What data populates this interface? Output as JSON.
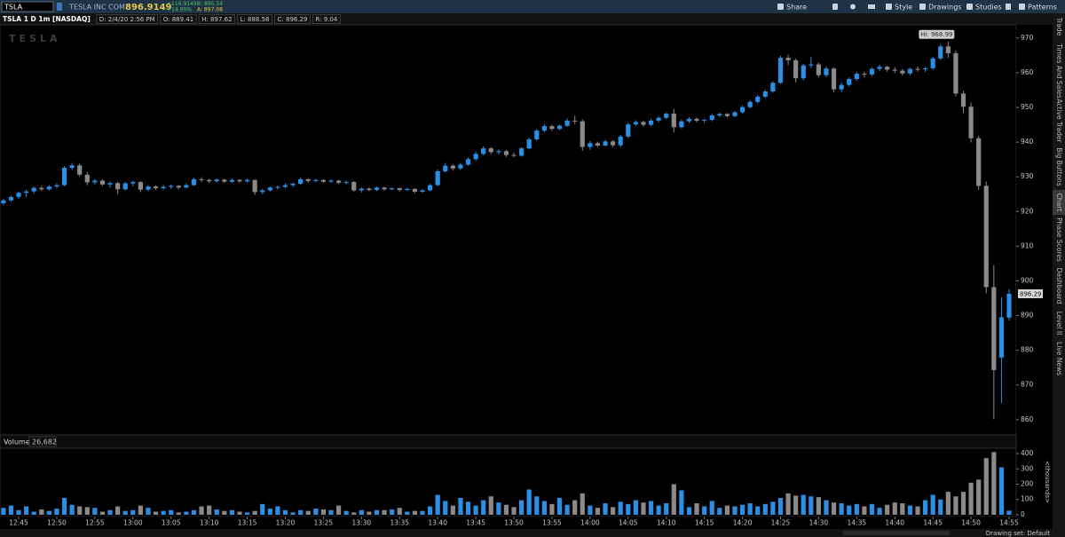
{
  "header": {
    "symbol": "TSLA",
    "company": "TESLA INC COM",
    "last": "896.9149",
    "change": "+116.9149",
    "change_pct": "+14.99%",
    "bid": "B: 895.54",
    "ask": "A: 897.08",
    "buttons": [
      "Share",
      "Style",
      "Drawings",
      "Studies",
      "Patterns"
    ]
  },
  "info_bar": {
    "title": "TSLA 1 D 1m [NASDAQ]",
    "items": [
      "D: 2/4/20 2:56 PM",
      "O: 889.41",
      "H: 897.62",
      "L: 888.58",
      "C: 896.29",
      "R: 9.04"
    ]
  },
  "side_tabs": [
    "Trade",
    "Times And Sales",
    "Active Trader",
    "Big Buttons",
    "Chart",
    "Phase Scores",
    "Dashboard",
    "Level II",
    "Live News"
  ],
  "footer": {
    "drawing_set": "Drawing set: Default"
  },
  "chart_data": {
    "type": "candlestick",
    "watermark": "TESLA",
    "up_color": "#2b8fe6",
    "down_color": "#8a8a8a",
    "x": [
      763,
      764,
      765,
      766,
      767,
      768,
      769,
      770,
      771,
      772,
      773,
      774,
      775,
      776,
      777,
      778,
      779,
      780,
      781,
      782,
      783,
      784,
      785,
      786,
      787,
      788,
      789,
      790,
      791,
      792,
      793,
      794,
      795,
      796,
      797,
      798,
      799,
      800,
      801,
      802,
      803,
      804,
      805,
      806,
      807,
      808,
      809,
      810,
      811,
      812,
      813,
      814,
      815,
      816,
      817,
      818,
      819,
      820,
      821,
      822,
      823,
      824,
      825,
      826,
      827,
      828,
      829,
      830,
      831,
      832,
      833,
      834,
      835,
      836,
      837,
      838,
      839,
      840,
      841,
      842,
      843,
      844,
      845,
      846,
      847,
      848,
      849,
      850,
      851,
      852,
      853,
      854,
      855,
      856,
      857,
      858,
      859,
      860,
      861,
      862,
      863,
      864,
      865,
      866,
      867,
      868,
      869,
      870,
      871,
      872,
      873,
      874,
      875,
      876,
      877,
      878,
      879,
      880,
      881,
      882,
      883,
      884,
      885,
      886,
      887,
      888,
      889,
      890,
      891,
      892,
      893,
      894,
      895
    ],
    "open": [
      922.4,
      923.2,
      924.2,
      925.4,
      925.8,
      926.8,
      926.4,
      927.2,
      927.6,
      932.6,
      933.3,
      930.6,
      928.4,
      928.9,
      927.8,
      928.2,
      926.4,
      928.1,
      928.5,
      926.3,
      927.2,
      926.7,
      927.1,
      927.4,
      926.9,
      927.6,
      929.3,
      929.1,
      928.7,
      929.2,
      928.6,
      929.1,
      928.7,
      929.1,
      925.6,
      926.1,
      926.9,
      927.1,
      927.6,
      928,
      929.3,
      928.8,
      929.1,
      928.6,
      928.9,
      928.3,
      928.5,
      926.1,
      926.6,
      926.2,
      926.9,
      926.4,
      926.7,
      926.2,
      926.5,
      925.7,
      926.1,
      927.6,
      931.6,
      933.2,
      932.4,
      933.5,
      935.1,
      936.6,
      938.2,
      937.1,
      937.4,
      936.3,
      936.1,
      938.2,
      940.8,
      943.3,
      944.6,
      943.8,
      944.7,
      946.2,
      946,
      938.6,
      939.7,
      939,
      940.2,
      939.1,
      941.6,
      945.1,
      945.8,
      945,
      946.2,
      947,
      948.2,
      944.3,
      946,
      946.7,
      946.2,
      946.4,
      947.7,
      948.1,
      947.5,
      948.6,
      950.1,
      951.6,
      953.1,
      954.6,
      957.1,
      964.3,
      963.6,
      958.4,
      962.1,
      962.4,
      959.3,
      961.2,
      955.2,
      956.5,
      958.2,
      959.7,
      959.5,
      961.1,
      961.7,
      960.9,
      960.6,
      959.8,
      961.1,
      961,
      961.3,
      964.1,
      967.6,
      965.6,
      954,
      950.2,
      941.1,
      927.4,
      898.2,
      877.9,
      889.41
    ],
    "high": [
      923.6,
      924.6,
      925.8,
      926.3,
      927.2,
      927.4,
      927.6,
      928.1,
      933.1,
      934,
      933.8,
      931.4,
      929.3,
      929.2,
      928.6,
      928.5,
      928.5,
      928.9,
      928.7,
      927.6,
      927.5,
      927.7,
      927.8,
      927.6,
      928.1,
      929.7,
      929.9,
      929.4,
      929.5,
      929.4,
      929.6,
      929.3,
      929.5,
      929.2,
      926.5,
      927.2,
      927.5,
      928.1,
      928.4,
      929.8,
      929.6,
      929.4,
      929.3,
      929.2,
      929.1,
      928.9,
      928.8,
      926.9,
      926.9,
      927.2,
      927.1,
      926.9,
      926.9,
      926.8,
      926.7,
      926.4,
      928,
      932.2,
      934,
      933.6,
      934,
      935.6,
      937.2,
      938.8,
      938.6,
      937.9,
      937.8,
      937,
      938.6,
      941.3,
      943.8,
      945.2,
      945,
      945.1,
      946.8,
      947.6,
      946.5,
      940.3,
      940.1,
      940.6,
      940.6,
      942.1,
      945.6,
      946.3,
      946.2,
      946.7,
      947.5,
      948.6,
      949.6,
      946.5,
      947.2,
      947.1,
      946.8,
      948.2,
      948.5,
      948.4,
      949,
      950.6,
      952.1,
      953.6,
      955.1,
      957.6,
      964.9,
      965.2,
      964.1,
      962.6,
      964.5,
      962.9,
      961.8,
      961.6,
      957.2,
      958.7,
      960.2,
      960.3,
      961.6,
      962.3,
      962,
      961.6,
      961.1,
      961.5,
      961.8,
      961.7,
      964.6,
      968.2,
      968.99,
      966.4,
      954.8,
      951.4,
      941.8,
      928.6,
      904.5,
      895.3,
      897.62
    ],
    "low": [
      921.8,
      922.9,
      923.6,
      924.2,
      925.1,
      925.9,
      926,
      926.7,
      927.3,
      932,
      930,
      927.6,
      927.8,
      927.4,
      926.9,
      925,
      926,
      927.3,
      925.6,
      925.8,
      926.2,
      926.3,
      926.5,
      926.4,
      926.6,
      927.4,
      928.5,
      928.2,
      928.4,
      928.2,
      928.3,
      928.2,
      928.4,
      924.8,
      925,
      925.8,
      926.3,
      926.7,
      927.1,
      927.7,
      928.3,
      928.4,
      928.2,
      928.3,
      927.9,
      927.8,
      925.7,
      925.5,
      925.8,
      925.9,
      926,
      926.1,
      925.8,
      925.9,
      925.3,
      925.4,
      925.9,
      927.4,
      931.2,
      931.8,
      932,
      933.2,
      934.6,
      936.2,
      936.5,
      936.4,
      935.7,
      935.6,
      935.8,
      937.9,
      940.4,
      942.8,
      943.2,
      943.4,
      944.4,
      945.2,
      937.5,
      937.8,
      938.6,
      938.7,
      938.5,
      938.6,
      941.2,
      944.6,
      944.4,
      944.6,
      945.7,
      946.6,
      942.8,
      943.9,
      945.5,
      945.7,
      945.6,
      946,
      947.2,
      947.1,
      947.2,
      948.2,
      949.8,
      951.2,
      952.7,
      954.2,
      956.8,
      962.2,
      957.2,
      957.8,
      961.4,
      958.6,
      958.7,
      954.3,
      954.4,
      956,
      957.7,
      958.7,
      959,
      960.5,
      960.3,
      959.9,
      959.2,
      959.3,
      960.3,
      960.2,
      960.8,
      963.7,
      964.3,
      953.2,
      948.4,
      939.9,
      926.2,
      896.4,
      860.1,
      864.8,
      888.58
    ],
    "close": [
      923.2,
      924.2,
      925.4,
      925.8,
      926.8,
      926.4,
      927.2,
      927.6,
      932.6,
      933.3,
      930.6,
      928.4,
      928.9,
      927.8,
      928.2,
      926.4,
      928.1,
      928.5,
      926.3,
      927.2,
      926.7,
      927.1,
      927.4,
      926.9,
      927.6,
      929.3,
      929.1,
      928.7,
      929.2,
      928.6,
      929.1,
      928.7,
      929.1,
      925.6,
      926.1,
      926.9,
      927.1,
      927.6,
      928,
      929.3,
      928.8,
      929.1,
      928.6,
      928.9,
      928.3,
      928.5,
      926.1,
      926.6,
      926.2,
      926.9,
      926.4,
      926.7,
      926.2,
      926.5,
      925.7,
      926.1,
      927.6,
      931.6,
      933.2,
      932.4,
      933.5,
      935.1,
      936.6,
      938.2,
      937.1,
      937.4,
      936.3,
      936.1,
      938.2,
      940.8,
      943.3,
      944.6,
      943.8,
      944.7,
      946.2,
      946,
      938.6,
      939.7,
      939,
      940.2,
      939.1,
      941.6,
      945.1,
      945.8,
      945,
      946.2,
      947,
      948.2,
      944.3,
      946,
      946.7,
      946.2,
      946.4,
      947.7,
      948.1,
      947.5,
      948.6,
      950.1,
      951.6,
      953.1,
      954.6,
      957.1,
      964.3,
      963.6,
      958.4,
      962.1,
      962.4,
      959.3,
      961.2,
      955.2,
      956.5,
      958.2,
      959.7,
      959.5,
      961.1,
      961.7,
      960.9,
      960.6,
      959.8,
      961.1,
      961,
      961.3,
      964.1,
      967.6,
      965.6,
      954,
      950.2,
      941.1,
      927.4,
      898.2,
      874.3,
      889.5,
      896.29
    ],
    "xlim": [
      762.55,
      895.93
    ],
    "xticks": [
      {
        "value": 765,
        "label": "12:45"
      },
      {
        "value": 770,
        "label": "12:50"
      },
      {
        "value": 775,
        "label": "12:55"
      },
      {
        "value": 780,
        "label": "13:00"
      },
      {
        "value": 785,
        "label": "13:05"
      },
      {
        "value": 790,
        "label": "13:10"
      },
      {
        "value": 795,
        "label": "13:15"
      },
      {
        "value": 800,
        "label": "13:20"
      },
      {
        "value": 805,
        "label": "13:25"
      },
      {
        "value": 810,
        "label": "13:30"
      },
      {
        "value": 815,
        "label": "13:35"
      },
      {
        "value": 820,
        "label": "13:40"
      },
      {
        "value": 825,
        "label": "13:45"
      },
      {
        "value": 830,
        "label": "13:50"
      },
      {
        "value": 835,
        "label": "13:55"
      },
      {
        "value": 840,
        "label": "14:00"
      },
      {
        "value": 845,
        "label": "14:05"
      },
      {
        "value": 850,
        "label": "14:10"
      },
      {
        "value": 855,
        "label": "14:15"
      },
      {
        "value": 860,
        "label": "14:20"
      },
      {
        "value": 865,
        "label": "14:25"
      },
      {
        "value": 870,
        "label": "14:30"
      },
      {
        "value": 875,
        "label": "14:35"
      },
      {
        "value": 880,
        "label": "14:40"
      },
      {
        "value": 885,
        "label": "14:45"
      },
      {
        "value": 890,
        "label": "14:50"
      },
      {
        "value": 895,
        "label": "14:55"
      }
    ],
    "ylim": [
      855.6,
      973.8
    ],
    "yticks": [
      860,
      870,
      880,
      890,
      900,
      910,
      920,
      930,
      940,
      950,
      960,
      970
    ],
    "high_label": "Hi: 968.99",
    "last_label": "896.29",
    "volume": {
      "title": "Volume",
      "current": "26,682",
      "unit": "<thousands>",
      "values": [
        45,
        60,
        30,
        55,
        20,
        35,
        25,
        40,
        110,
        65,
        55,
        50,
        45,
        20,
        30,
        55,
        25,
        30,
        60,
        45,
        20,
        25,
        30,
        15,
        20,
        30,
        55,
        60,
        35,
        25,
        30,
        20,
        15,
        25,
        70,
        40,
        55,
        30,
        15,
        30,
        25,
        40,
        35,
        30,
        60,
        25,
        15,
        30,
        20,
        30,
        30,
        35,
        45,
        20,
        25,
        25,
        55,
        130,
        90,
        60,
        110,
        85,
        60,
        95,
        120,
        80,
        65,
        50,
        95,
        165,
        120,
        90,
        70,
        110,
        65,
        95,
        140,
        60,
        45,
        75,
        50,
        85,
        70,
        95,
        80,
        90,
        60,
        75,
        200,
        160,
        50,
        75,
        55,
        90,
        45,
        60,
        55,
        65,
        75,
        55,
        70,
        85,
        110,
        140,
        125,
        130,
        120,
        115,
        95,
        80,
        75,
        60,
        70,
        55,
        70,
        45,
        65,
        80,
        75,
        60,
        55,
        95,
        130,
        100,
        150,
        120,
        150,
        210,
        230,
        370,
        410,
        310,
        26.682
      ],
      "ylim": [
        -12,
        435
      ],
      "yticks": [
        0,
        100,
        200,
        300,
        400
      ]
    }
  }
}
